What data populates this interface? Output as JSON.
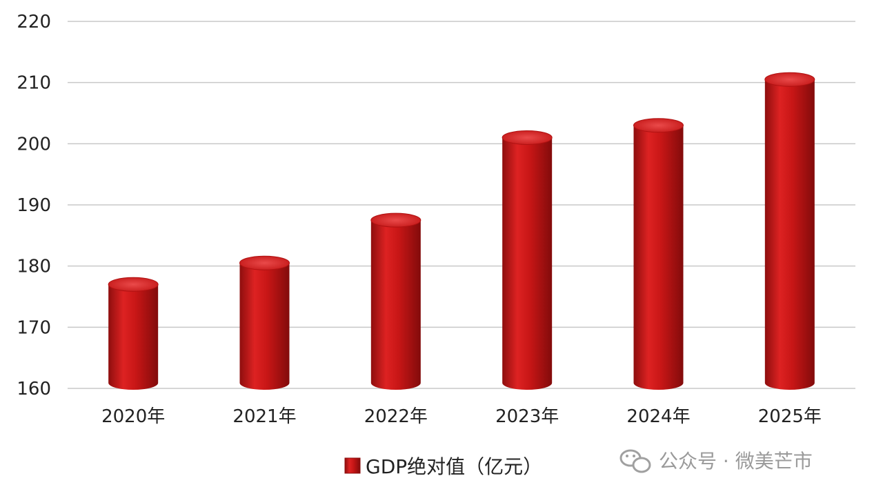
{
  "chart_data": {
    "type": "bar",
    "categories": [
      "2020年",
      "2021年",
      "2022年",
      "2023年",
      "2024年",
      "2025年"
    ],
    "series": [
      {
        "name": "GDP绝对值（亿元）",
        "values": [
          177,
          180.5,
          187.5,
          201,
          203,
          210.5
        ]
      }
    ],
    "ylim": [
      160,
      220
    ],
    "yticks": [
      160,
      170,
      180,
      190,
      200,
      210,
      220
    ],
    "grid": true,
    "legend": "bottom"
  },
  "colors": {
    "bar": "#cc1a1a",
    "bar_top": "#e23a3a",
    "grid": "#c8c8c8"
  },
  "watermark": {
    "icon": "wechat-icon",
    "text": "公众号 · 微美芒市"
  }
}
